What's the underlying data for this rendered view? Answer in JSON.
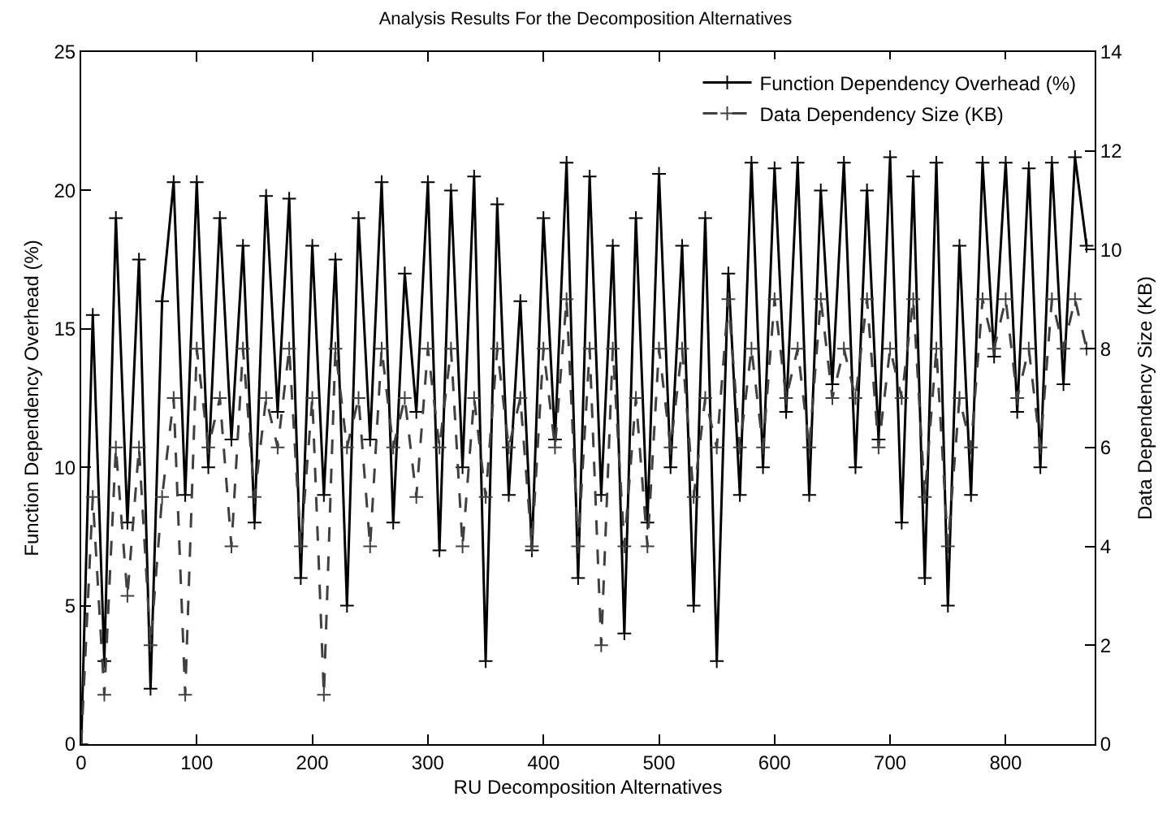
{
  "chart_data": {
    "type": "line",
    "title": "Analysis Results For the Decomposition Alternatives",
    "xlabel": "RU Decomposition Alternatives",
    "ylabel": "Function Dependency Overhead (%)",
    "y2label": "Data Dependency Size (KB)",
    "x": [
      0,
      10,
      20,
      30,
      40,
      50,
      60,
      70,
      80,
      90,
      100,
      110,
      120,
      130,
      140,
      150,
      160,
      170,
      180,
      190,
      200,
      210,
      220,
      230,
      240,
      250,
      260,
      270,
      280,
      290,
      300,
      310,
      320,
      330,
      340,
      350,
      360,
      370,
      380,
      390,
      400,
      410,
      420,
      430,
      440,
      450,
      460,
      470,
      480,
      490,
      500,
      510,
      520,
      530,
      540,
      550,
      560,
      570,
      580,
      590,
      600,
      610,
      620,
      630,
      640,
      650,
      660,
      670,
      680,
      690,
      700,
      710,
      720,
      730,
      740,
      750,
      760,
      770,
      780,
      790,
      800,
      810,
      820,
      830,
      840,
      850,
      860,
      870
    ],
    "series": [
      {
        "name": "Function Dependency Overhead (%)",
        "color": "#000000",
        "marker": "cross",
        "line_style": "solid",
        "values": [
          0,
          15.5,
          3,
          19,
          8,
          17.5,
          2,
          16,
          20.3,
          9,
          20.3,
          10,
          19,
          11,
          18,
          8,
          19.8,
          12,
          19.7,
          6,
          18,
          9,
          17.5,
          5,
          19,
          11,
          20.3,
          8,
          17,
          12,
          20.3,
          7,
          20,
          10,
          20.5,
          3,
          19.5,
          9,
          16,
          7,
          19,
          11,
          21,
          6,
          20.5,
          9,
          18,
          4,
          19,
          8,
          20.6,
          10,
          18,
          5,
          19,
          3,
          17,
          9,
          21,
          10,
          20.8,
          12,
          21,
          9,
          20,
          13,
          21,
          10,
          20,
          11,
          21.2,
          8,
          20.5,
          6,
          21,
          5,
          18,
          9,
          21,
          14,
          21,
          12,
          20.8,
          10,
          21,
          13,
          21.2,
          18
        ]
      },
      {
        "name": "Data Dependency Size (KB)",
        "color": "#404040",
        "marker": "cross",
        "line_style": "dashed",
        "axis": "y2",
        "values": [
          0,
          5,
          1,
          6,
          3,
          6,
          2,
          5,
          7,
          1,
          8,
          6,
          7,
          4,
          8,
          5,
          7,
          6,
          8,
          4,
          7,
          1,
          8,
          6,
          7,
          4,
          8,
          6,
          7,
          5,
          8,
          6,
          8,
          4,
          7,
          5,
          8,
          6,
          7,
          4,
          8,
          6,
          9,
          4,
          8,
          2,
          8,
          4,
          7,
          4,
          8,
          6,
          8,
          5,
          7,
          6,
          9,
          6,
          8,
          6,
          9,
          7,
          8,
          6,
          9,
          7,
          8,
          7,
          9,
          6,
          8,
          7,
          9,
          5,
          8,
          4,
          7,
          6,
          9,
          8,
          9,
          7,
          8,
          6,
          9,
          8,
          9,
          8
        ]
      }
    ],
    "xlim": [
      0,
      877
    ],
    "xticks": [
      0,
      100,
      200,
      300,
      400,
      500,
      600,
      700,
      800
    ],
    "ylim": [
      0,
      25
    ],
    "yticks": [
      0,
      5,
      10,
      15,
      20,
      25
    ],
    "y2lim": [
      0,
      14
    ],
    "y2ticks": [
      0,
      2,
      4,
      6,
      8,
      10,
      12,
      14
    ],
    "legend": "top right"
  }
}
